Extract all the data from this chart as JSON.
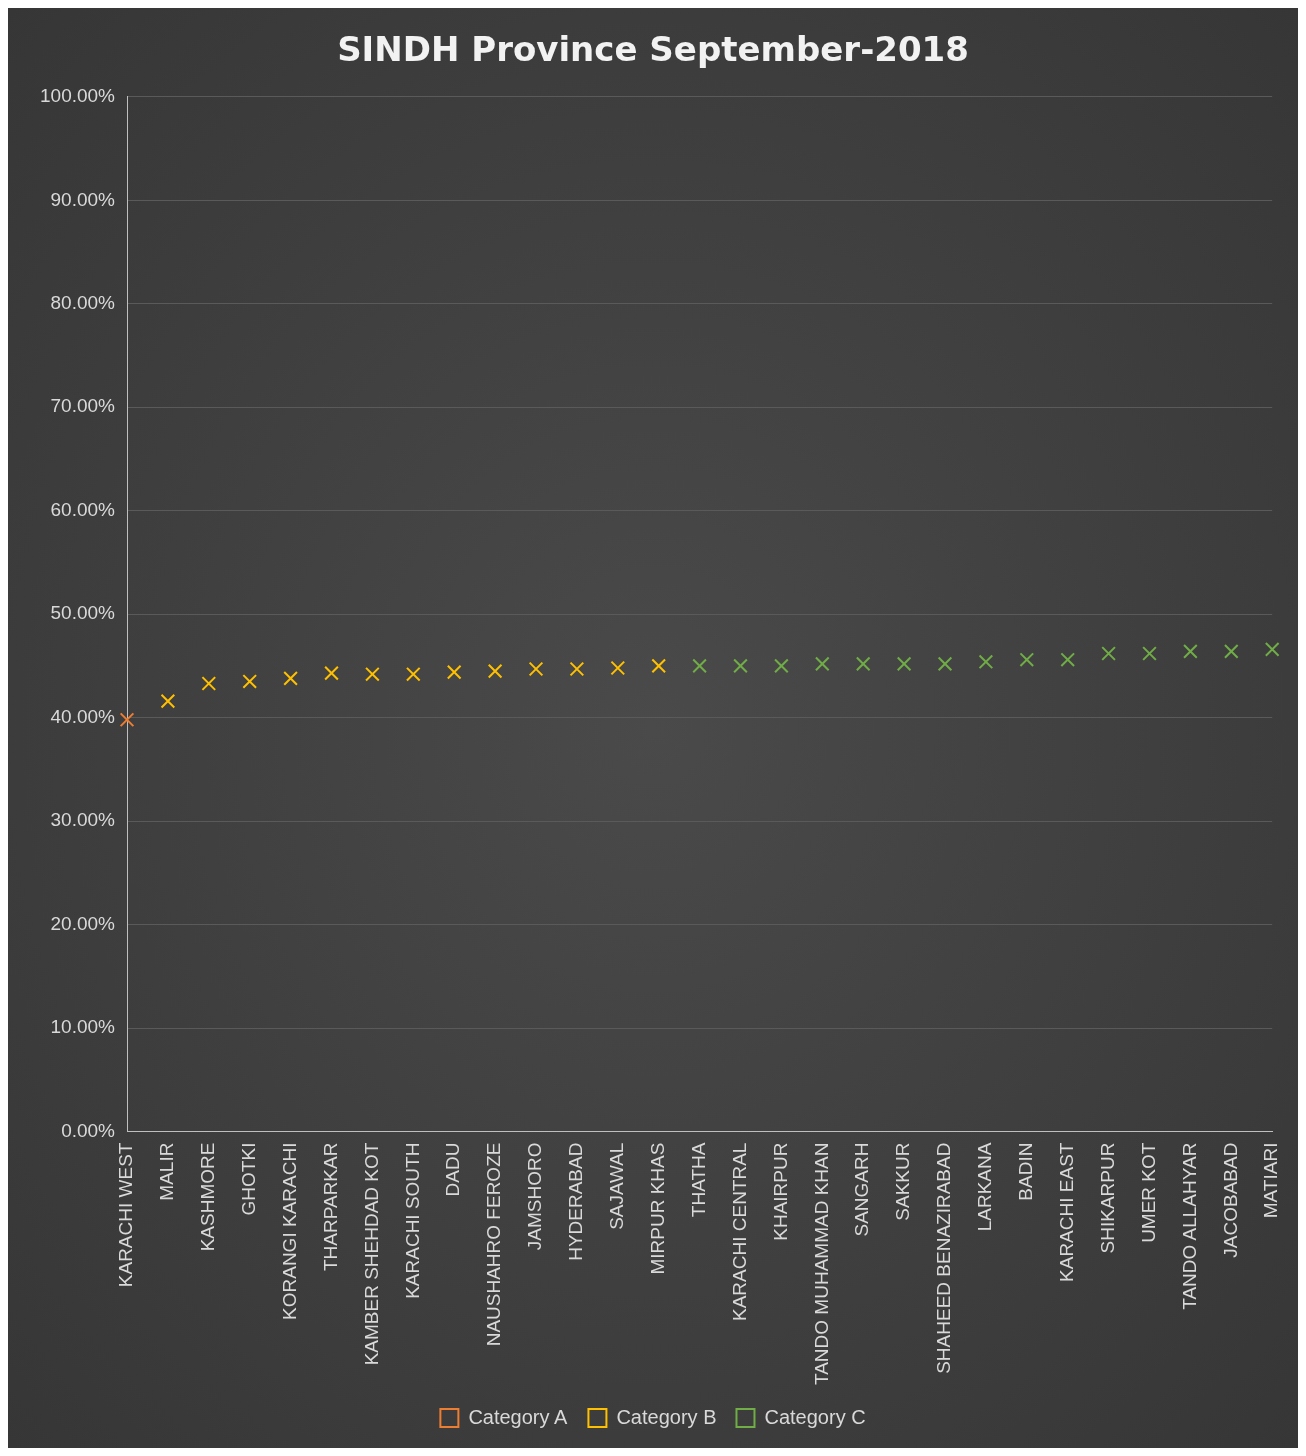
{
  "chart_data": {
    "type": "scatter",
    "title": "SINDH Province September-2018",
    "categories": [
      "KARACHI WEST",
      "MALIR",
      "KASHMORE",
      "GHOTKI",
      "KORANGI KARACHI",
      "THARPARKAR",
      "KAMBER SHEHDAD KOT",
      "KARACHI SOUTH",
      "DADU",
      "NAUSHAHRO FEROZE",
      "JAMSHORO",
      "HYDERABAD",
      "SAJAWAL",
      "MIRPUR KHAS",
      "THATHA",
      "KARACHI CENTRAL",
      "KHAIRPUR",
      "TANDO MUHAMMAD KHAN",
      "SANGARH",
      "SAKKUR",
      "SHAHEED BENAZIRABAD",
      "LARKANA",
      "BADIN",
      "KARACHI EAST",
      "SHIKARPUR",
      "UMER KOT",
      "TANDO ALLAHYAR",
      "JACOBABAD",
      "MATIARI"
    ],
    "series": [
      {
        "name": "Category A",
        "color": "#ed7d31",
        "values": [
          39.8,
          null,
          null,
          null,
          null,
          null,
          null,
          null,
          null,
          null,
          null,
          null,
          null,
          null,
          null,
          null,
          null,
          null,
          null,
          null,
          null,
          null,
          null,
          null,
          null,
          null,
          null,
          null,
          null
        ]
      },
      {
        "name": "Category B",
        "color": "#ffc000",
        "values": [
          null,
          41.6,
          43.3,
          43.5,
          43.8,
          44.3,
          44.2,
          44.2,
          44.4,
          44.5,
          44.7,
          44.7,
          44.8,
          45.0,
          null,
          null,
          null,
          null,
          null,
          null,
          null,
          null,
          null,
          null,
          null,
          null,
          null,
          null,
          null
        ]
      },
      {
        "name": "Category C",
        "color": "#70ad47",
        "values": [
          null,
          null,
          null,
          null,
          null,
          null,
          null,
          null,
          null,
          null,
          null,
          null,
          null,
          null,
          45.0,
          45.0,
          45.0,
          45.2,
          45.2,
          45.2,
          45.2,
          45.4,
          45.6,
          45.6,
          46.2,
          46.2,
          46.4,
          46.4,
          46.6
        ]
      }
    ],
    "ylim": [
      0,
      100
    ],
    "yticks": [
      {
        "value": 0,
        "label": "0.00%"
      },
      {
        "value": 10,
        "label": "10.00%"
      },
      {
        "value": 20,
        "label": "20.00%"
      },
      {
        "value": 30,
        "label": "30.00%"
      },
      {
        "value": 40,
        "label": "40.00%"
      },
      {
        "value": 50,
        "label": "50.00%"
      },
      {
        "value": 60,
        "label": "60.00%"
      },
      {
        "value": 70,
        "label": "70.00%"
      },
      {
        "value": 80,
        "label": "80.00%"
      },
      {
        "value": 90,
        "label": "90.00%"
      },
      {
        "value": 100,
        "label": "100.00%"
      }
    ],
    "grid": "y",
    "legend": "bottom",
    "marker": "cross"
  }
}
